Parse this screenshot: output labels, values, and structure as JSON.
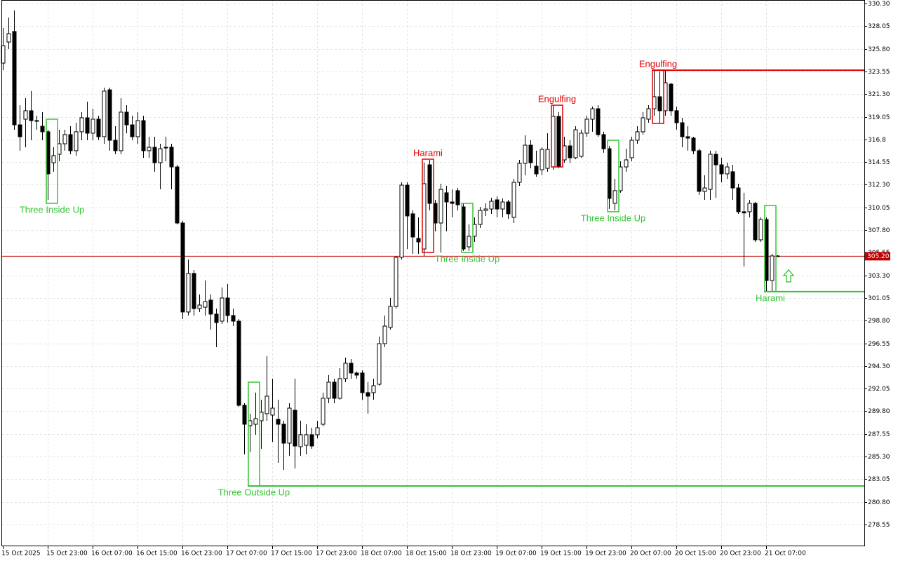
{
  "chart_data": {
    "type": "candlestick",
    "up_color": "#ffffff",
    "down_color": "#000000",
    "categories": [
      "15 Oct 2025",
      null,
      null,
      null,
      null,
      null,
      null,
      null,
      "15 Oct 23:00",
      null,
      null,
      null,
      null,
      null,
      null,
      null,
      "16 Oct 07:00",
      null,
      null,
      null,
      null,
      null,
      null,
      null,
      "16 Oct 15:00",
      null,
      null,
      null,
      null,
      null,
      null,
      null,
      "16 Oct 23:00",
      null,
      null,
      null,
      null,
      null,
      null,
      null,
      "17 Oct 07:00",
      null,
      null,
      null,
      null,
      null,
      null,
      null,
      "17 Oct 15:00",
      null,
      null,
      null,
      null,
      null,
      null,
      null,
      "17 Oct 23:00",
      null,
      null,
      null,
      null,
      null,
      null,
      null,
      "18 Oct 07:00",
      null,
      null,
      null,
      null,
      null,
      null,
      null,
      "18 Oct 15:00",
      null,
      null,
      null,
      null,
      null,
      null,
      null,
      "18 Oct 23:00",
      null,
      null,
      null,
      null,
      null,
      null,
      null,
      "19 Oct 07:00",
      null,
      null,
      null,
      null,
      null,
      null,
      null,
      "19 Oct 15:00",
      null,
      null,
      null,
      null,
      null,
      null,
      null,
      "19 Oct 23:00",
      null,
      null,
      null,
      null,
      null,
      null,
      null,
      "20 Oct 07:00",
      null,
      null,
      null,
      null,
      null,
      null,
      null,
      "20 Oct 15:00",
      null,
      null,
      null,
      null,
      null,
      null,
      null,
      "20 Oct 23:00",
      null,
      null,
      null,
      null,
      null,
      null,
      null,
      "21 Oct 07:00",
      null,
      null
    ],
    "open": [
      324.38,
      326.47,
      327.52,
      318.25,
      318.81,
      319.65,
      318.67,
      318.11,
      317.56,
      314.49,
      315.33,
      316.37,
      317.28,
      315.68,
      317.56,
      318.95,
      317.42,
      318.81,
      317.07,
      321.73,
      316.72,
      315.68,
      319.51,
      318.25,
      317.07,
      318.67,
      315.68,
      316.02,
      314.49,
      316.02,
      316.02,
      314.07,
      308.5,
      299.66,
      303.49,
      300.0,
      300.14,
      300.84,
      299.45,
      298.75,
      301.05,
      299.31,
      298.75,
      290.39,
      288.37,
      288.51,
      288.86,
      289.56,
      289.42,
      289.0,
      288.51,
      286.63,
      289.9,
      286.28,
      286.42,
      287.47,
      287.47,
      288.51,
      291.09,
      292.69,
      291.09,
      293.04,
      294.57,
      293.6,
      293.6,
      291.65,
      291.65,
      292.48,
      296.52,
      298.12,
      300.21,
      305.09,
      312.26,
      309.41,
      306.97,
      305.92,
      314.28,
      310.45,
      308.5,
      311.5,
      310.59,
      311.71,
      310.1,
      306.13,
      307.18,
      308.36,
      309.75,
      309.89,
      310.8,
      309.89,
      310.59,
      309.06,
      312.54,
      314.42,
      316.23,
      314.14,
      313.79,
      313.93,
      314.07,
      319.09,
      314.77,
      316.16,
      314.98,
      315.12,
      317.42,
      318.81,
      319.85,
      317.28,
      315.88,
      310.45,
      311.71,
      314.07,
      314.98,
      316.72,
      317.56,
      318.81,
      319.85,
      321.04,
      319.65,
      322.29,
      319.65,
      318.46,
      317.07,
      316.93,
      315.68,
      311.64,
      311.84,
      315.33,
      314.28,
      313.38,
      313.59,
      311.98,
      309.62,
      309.62,
      310.45,
      306.83,
      308.85,
      302.79,
      305.23
    ],
    "high": [
      327.86,
      328.91,
      329.61,
      320.2,
      320.9,
      321.6,
      319.16,
      319.51,
      317.76,
      316.02,
      317.76,
      317.76,
      318.11,
      318.46,
      319.51,
      320.55,
      319.85,
      319.16,
      321.94,
      321.94,
      318.11,
      320.9,
      320.2,
      319.16,
      319.51,
      319.16,
      317.07,
      317.07,
      316.37,
      317.07,
      316.37,
      314.28,
      308.71,
      304.88,
      303.83,
      301.4,
      302.79,
      301.4,
      300.0,
      302.09,
      302.44,
      300.0,
      298.96,
      290.6,
      289.56,
      291.65,
      290.95,
      295.27,
      293.04,
      290.95,
      288.86,
      290.6,
      293.04,
      288.86,
      288.51,
      288.16,
      288.86,
      291.65,
      293.39,
      293.04,
      294.08,
      295.13,
      294.99,
      293.74,
      293.87,
      292.69,
      293.04,
      297.22,
      299.31,
      301.05,
      305.23,
      312.54,
      312.54,
      309.75,
      309.06,
      314.49,
      314.77,
      310.8,
      312.4,
      312.19,
      311.84,
      311.98,
      310.45,
      308.36,
      309.06,
      310.1,
      310.45,
      311.01,
      311.15,
      310.94,
      310.8,
      312.89,
      314.77,
      317.21,
      316.72,
      315.68,
      316.02,
      317.42,
      320.2,
      319.51,
      317.07,
      316.72,
      318.11,
      317.76,
      319.16,
      320.06,
      320.2,
      317.56,
      316.16,
      312.89,
      314.63,
      315.88,
      317.07,
      318.11,
      319.51,
      320.2,
      323.68,
      323.55,
      323.68,
      322.43,
      320.06,
      318.95,
      318.11,
      317.07,
      315.88,
      313.24,
      315.68,
      315.68,
      314.98,
      314.49,
      314.28,
      312.4,
      311.5,
      310.8,
      310.59,
      309.06,
      309.06,
      305.44,
      305.3
    ],
    "low": [
      323.68,
      325.77,
      317.76,
      315.68,
      316.02,
      316.72,
      317.76,
      316.72,
      310.8,
      313.59,
      314.63,
      315.68,
      315.33,
      315.19,
      316.72,
      316.72,
      316.72,
      316.72,
      316.37,
      315.68,
      315.33,
      315.33,
      317.42,
      316.72,
      316.37,
      314.98,
      314.98,
      313.59,
      311.84,
      314.63,
      311.84,
      308.36,
      298.96,
      299.31,
      299.31,
      299.66,
      299.31,
      297.91,
      296.17,
      298.47,
      298.61,
      298.26,
      290.25,
      285.52,
      285.73,
      287.47,
      286.07,
      288.86,
      286.77,
      284.68,
      283.98,
      285.38,
      284.12,
      285.38,
      285.52,
      286.07,
      287.12,
      288.3,
      290.6,
      290.6,
      290.95,
      292.69,
      293.04,
      293.04,
      290.95,
      289.56,
      290.95,
      292.34,
      296.17,
      297.91,
      300.0,
      304.88,
      305.92,
      305.44,
      305.44,
      305.23,
      309.75,
      307.67,
      305.58,
      307.67,
      309.06,
      309.75,
      305.72,
      305.72,
      306.62,
      308.01,
      309.2,
      309.41,
      309.06,
      309.06,
      308.92,
      308.5,
      312.19,
      313.24,
      313.93,
      313.1,
      313.24,
      313.59,
      313.79,
      313.93,
      314.49,
      314.49,
      314.84,
      314.98,
      317.07,
      317.56,
      317.07,
      315.47,
      309.89,
      309.75,
      311.5,
      313.59,
      314.63,
      316.37,
      317.28,
      318.46,
      319.16,
      318.46,
      319.16,
      319.16,
      317.76,
      316.02,
      315.68,
      315.33,
      311.29,
      310.8,
      310.8,
      311.01,
      312.54,
      312.89,
      310.8,
      309.41,
      304.18,
      309.06,
      306.62,
      306.62,
      301.74,
      301.74,
      305.16
    ],
    "close": [
      326.12,
      327.31,
      318.25,
      317.07,
      319.65,
      318.67,
      318.6,
      317.56,
      313.38,
      315.19,
      316.37,
      317.28,
      315.68,
      317.56,
      318.95,
      317.42,
      318.81,
      317.07,
      321.6,
      316.72,
      315.68,
      319.51,
      318.25,
      317.07,
      318.67,
      315.68,
      316.02,
      314.49,
      315.88,
      315.95,
      314.07,
      308.5,
      299.66,
      303.49,
      300.0,
      300.35,
      300.7,
      299.45,
      298.61,
      301.05,
      299.31,
      298.75,
      290.39,
      288.51,
      288.86,
      289.07,
      289.7,
      291.3,
      290.11,
      288.51,
      286.63,
      290.11,
      286.35,
      287.47,
      287.47,
      286.35,
      288.16,
      291.09,
      292.69,
      291.09,
      293.04,
      294.57,
      293.6,
      293.39,
      291.65,
      291.3,
      292.34,
      296.52,
      298.26,
      300.21,
      305.09,
      312.26,
      309.2,
      307.11,
      306.62,
      312.4,
      310.45,
      308.5,
      311.84,
      310.59,
      310.45,
      310.31,
      305.92,
      307.18,
      308.36,
      309.75,
      309.89,
      310.66,
      309.89,
      310.59,
      309.41,
      312.54,
      314.42,
      316.23,
      314.49,
      313.38,
      315.81,
      315.81,
      319.09,
      314.14,
      316.16,
      314.98,
      317.76,
      317.42,
      318.81,
      319.85,
      317.28,
      315.88,
      310.94,
      311.71,
      314.07,
      314.77,
      316.72,
      317.56,
      318.95,
      319.85,
      321.04,
      319.65,
      322.43,
      319.65,
      318.46,
      317.07,
      316.93,
      315.68,
      311.64,
      311.98,
      315.33,
      314.28,
      313.38,
      314.07,
      311.98,
      309.62,
      309.5,
      310.45,
      306.83,
      308.85,
      302.79,
      305.23,
      305.2
    ],
    "ylim": [
      276.39,
      330.65
    ],
    "yticks": [
      {
        "value": 330.3,
        "label": "330.30"
      },
      328.05,
      {
        "value": 325.8,
        "label": "325.80"
      },
      323.55,
      {
        "value": 321.3,
        "label": "321.30"
      },
      319.05,
      316.8,
      314.55,
      {
        "value": 312.3,
        "label": "312.30"
      },
      310.05,
      {
        "value": 307.8,
        "label": "307.80"
      },
      305.55,
      {
        "value": 303.3,
        "label": "303.30"
      },
      301.05,
      {
        "value": 298.8,
        "label": "298.80"
      },
      296.55,
      {
        "value": 294.3,
        "label": "294.30"
      },
      292.05,
      {
        "value": 289.8,
        "label": "289.80"
      },
      287.55,
      {
        "value": 285.3,
        "label": "285.30"
      },
      283.05,
      {
        "value": 280.8,
        "label": "280.80"
      },
      278.55
    ],
    "grid": true,
    "last_price": {
      "value": 305.2,
      "label": "305.20",
      "color": "#c00000"
    },
    "annotations": [
      {
        "label": "Three Inside Up",
        "color": "#33c433",
        "from": 8,
        "to": 9,
        "high": 318.81,
        "low": 310.45,
        "label_position": "below"
      },
      {
        "label": "Three Outside Up",
        "color": "#33c433",
        "from": 44,
        "to": 45,
        "high": 292.69,
        "low": 282.38,
        "level": 282.38,
        "label_position": "below"
      },
      {
        "label": "Harami",
        "color": "#e00000",
        "from": 75,
        "to": 76,
        "high": 314.84,
        "low": 305.58,
        "label_position": "above"
      },
      {
        "label": "Three Inside Up",
        "color": "#33c433",
        "from": 82,
        "to": 83,
        "high": 310.45,
        "low": 305.58,
        "label_position": "below"
      },
      {
        "label": "Engulfing",
        "color": "#e00000",
        "from": 98,
        "to": 99,
        "high": 320.2,
        "low": 314.07,
        "label_position": "above"
      },
      {
        "label": "Three Inside Up",
        "color": "#33c433",
        "from": 108,
        "to": 109,
        "high": 316.72,
        "low": 309.62,
        "label_position": "below"
      },
      {
        "label": "Engulfing",
        "color": "#e00000",
        "from": 116,
        "to": 117,
        "high": 323.68,
        "low": 318.39,
        "level": 323.68,
        "label_position": "above"
      },
      {
        "label": "Harami",
        "color": "#33c433",
        "from": 136,
        "to": 137,
        "high": 310.24,
        "low": 301.68,
        "level": 301.68,
        "label_position": "below",
        "signal": "up"
      }
    ]
  }
}
